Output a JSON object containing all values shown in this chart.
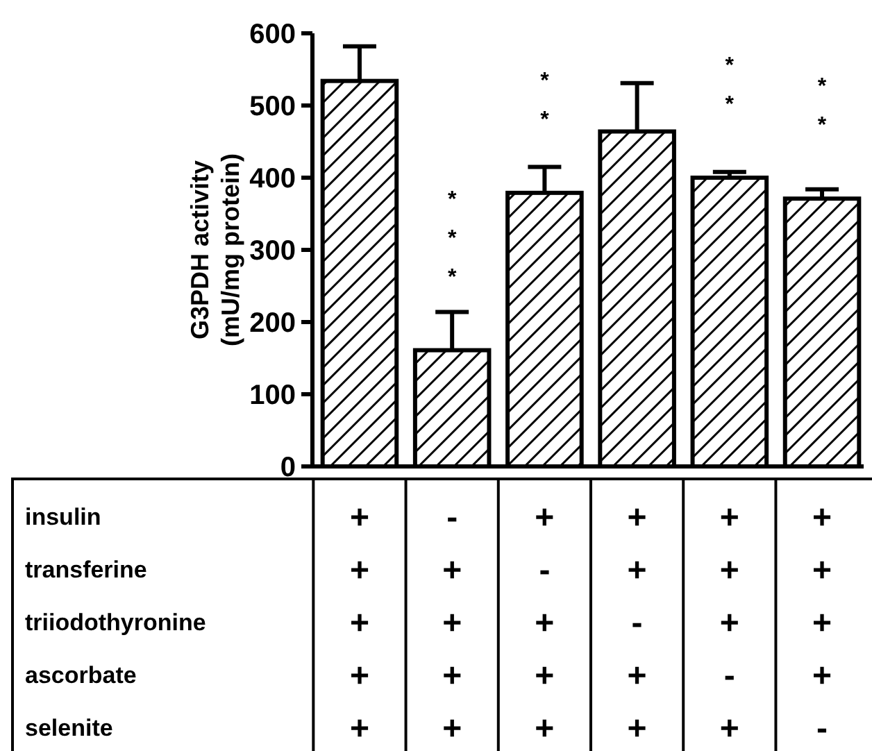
{
  "chart_data": {
    "type": "bar",
    "ylabel": "G3PDH activity\n(mU/mg protein)",
    "categories": [
      "+\n+\n+\n+\n+",
      "-\n+\n+\n+\n+",
      "+\n-\n+\n+\n+",
      "+\n+\n-\n+\n+",
      "+\n+\n+\n-\n+",
      "+\n+\n+\n+\n-"
    ],
    "values": [
      534,
      161,
      379,
      464,
      400,
      371
    ],
    "errors": [
      48,
      53,
      36,
      67,
      8,
      13
    ],
    "color": "#000000",
    "ylim": [
      0,
      600
    ],
    "yticks": [
      0,
      100,
      200,
      300,
      400,
      500,
      600
    ],
    "annotations": [
      "insulin",
      "transferine",
      "triiodothyronine",
      "ascorbate",
      "selenite",
      {
        "text": "*\n*\n*",
        "x": "-\n+\n+\n+\n+",
        "y": 161
      },
      {
        "text": "*\n*",
        "x": "+\n-\n+\n+\n+",
        "y": 379
      },
      {
        "text": "*\n*",
        "x": "+\n+\n+\n-\n+",
        "y": 400
      },
      {
        "text": "*\n*",
        "x": "+\n+\n+\n+\n-",
        "y": 371
      }
    ]
  }
}
